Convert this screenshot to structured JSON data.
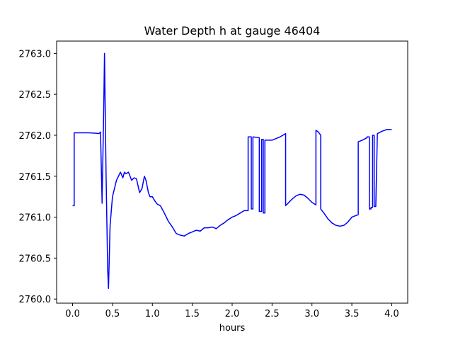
{
  "chart_data": {
    "type": "line",
    "title": "Water Depth h at gauge 46404",
    "xlabel": "hours",
    "ylabel": "",
    "xlim": [
      -0.2,
      4.2
    ],
    "ylim": [
      2759.95,
      2763.15
    ],
    "x_ticks": [
      0.0,
      0.5,
      1.0,
      1.5,
      2.0,
      2.5,
      3.0,
      3.5,
      4.0
    ],
    "x_tick_labels": [
      "0.0",
      "0.5",
      "1.0",
      "1.5",
      "2.0",
      "2.5",
      "3.0",
      "3.5",
      "4.0"
    ],
    "y_ticks": [
      2760.0,
      2760.5,
      2761.0,
      2761.5,
      2762.0,
      2762.5,
      2763.0
    ],
    "y_tick_labels": [
      "2760.0",
      "2760.5",
      "2761.0",
      "2761.5",
      "2762.0",
      "2762.5",
      "2763.0"
    ],
    "grid": false,
    "series": [
      {
        "color": "#0000ff",
        "x": [
          0.0,
          0.02,
          0.02,
          0.1,
          0.2,
          0.3,
          0.33,
          0.35,
          0.37,
          0.37,
          0.39,
          0.4,
          0.42,
          0.44,
          0.45,
          0.46,
          0.47,
          0.5,
          0.55,
          0.6,
          0.63,
          0.65,
          0.67,
          0.7,
          0.72,
          0.74,
          0.77,
          0.8,
          0.84,
          0.87,
          0.9,
          0.92,
          0.95,
          0.97,
          1.0,
          1.03,
          1.06,
          1.1,
          1.15,
          1.2,
          1.25,
          1.3,
          1.35,
          1.4,
          1.45,
          1.5,
          1.55,
          1.6,
          1.65,
          1.7,
          1.75,
          1.8,
          1.85,
          1.9,
          1.95,
          2.0,
          2.05,
          2.1,
          2.15,
          2.2,
          2.2,
          2.24,
          2.24,
          2.26,
          2.26,
          2.34,
          2.34,
          2.37,
          2.37,
          2.39,
          2.39,
          2.41,
          2.41,
          2.5,
          2.6,
          2.67,
          2.67,
          2.7,
          2.75,
          2.8,
          2.85,
          2.9,
          2.95,
          3.0,
          3.05,
          3.05,
          3.08,
          3.11,
          3.11,
          3.15,
          3.2,
          3.25,
          3.3,
          3.35,
          3.4,
          3.45,
          3.5,
          3.55,
          3.58,
          3.58,
          3.63,
          3.69,
          3.69,
          3.72,
          3.72,
          3.74,
          3.74,
          3.76,
          3.76,
          3.78,
          3.78,
          3.8,
          3.82,
          3.88,
          3.94,
          4.0
        ],
        "y": [
          2761.14,
          2761.14,
          2762.03,
          2762.03,
          2762.03,
          2762.025,
          2762.02,
          2762.04,
          2761.17,
          2761.2,
          2762.3,
          2763.0,
          2761.5,
          2760.35,
          2760.13,
          2760.5,
          2760.9,
          2761.25,
          2761.45,
          2761.55,
          2761.48,
          2761.55,
          2761.53,
          2761.55,
          2761.5,
          2761.45,
          2761.48,
          2761.47,
          2761.3,
          2761.35,
          2761.5,
          2761.45,
          2761.3,
          2761.25,
          2761.25,
          2761.2,
          2761.16,
          2761.14,
          2761.05,
          2760.95,
          2760.88,
          2760.8,
          2760.78,
          2760.77,
          2760.8,
          2760.82,
          2760.84,
          2760.83,
          2760.87,
          2760.87,
          2760.88,
          2760.86,
          2760.9,
          2760.93,
          2760.97,
          2761.0,
          2761.02,
          2761.05,
          2761.08,
          2761.08,
          2761.98,
          2761.98,
          2761.1,
          2761.1,
          2761.98,
          2761.97,
          2761.07,
          2761.07,
          2761.95,
          2761.95,
          2761.05,
          2761.05,
          2761.94,
          2761.94,
          2761.98,
          2762.02,
          2761.14,
          2761.17,
          2761.22,
          2761.26,
          2761.28,
          2761.27,
          2761.23,
          2761.18,
          2761.15,
          2762.06,
          2762.04,
          2762.0,
          2761.1,
          2761.05,
          2760.98,
          2760.93,
          2760.9,
          2760.89,
          2760.9,
          2760.94,
          2761.0,
          2761.02,
          2761.03,
          2761.92,
          2761.94,
          2761.97,
          2761.98,
          2761.98,
          2761.1,
          2761.1,
          2761.12,
          2761.12,
          2762.0,
          2762.0,
          2761.13,
          2761.13,
          2762.02,
          2762.05,
          2762.07,
          2762.07
        ]
      }
    ]
  }
}
